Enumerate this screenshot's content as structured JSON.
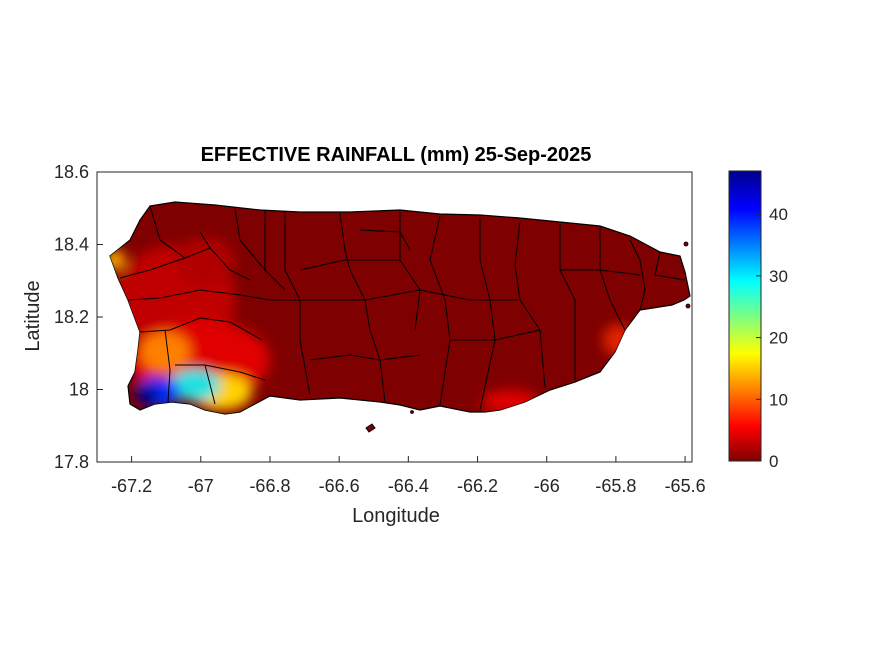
{
  "title": "EFFECTIVE RAINFALL (mm) 25-Sep-2025",
  "xlabel": "Longitude",
  "ylabel": "Latitude",
  "xlim": [
    -67.3,
    -65.58
  ],
  "ylim": [
    17.8,
    18.6
  ],
  "xticks": [
    "-67.2",
    "-67",
    "-66.8",
    "-66.6",
    "-66.4",
    "-66.2",
    "-66",
    "-65.8",
    "-65.6"
  ],
  "xtick_values": [
    -67.2,
    -67.0,
    -66.8,
    -66.6,
    -66.4,
    -66.2,
    -66.0,
    -65.8,
    -65.6
  ],
  "yticks": [
    "18.6",
    "18.4",
    "18.2",
    "18",
    "17.8"
  ],
  "ytick_values": [
    18.6,
    18.4,
    18.2,
    18.0,
    17.8
  ],
  "colorbar": {
    "colormap": "jet",
    "min": 0,
    "max": 47,
    "ticks": [
      "40",
      "30",
      "20",
      "10",
      "0"
    ],
    "tick_values": [
      40,
      30,
      20,
      10,
      0
    ]
  },
  "colors": {
    "background_rain": "#7f0000",
    "boundary": "#000000"
  },
  "chart_data": {
    "type": "heatmap",
    "title": "EFFECTIVE RAINFALL (mm) 25-Sep-2025",
    "xlabel": "Longitude",
    "ylabel": "Latitude",
    "xlim": [
      -67.3,
      -65.58
    ],
    "ylim": [
      17.8,
      18.6
    ],
    "value_range": [
      0,
      47
    ],
    "hotspots": [
      {
        "lon": -67.14,
        "lat": 17.99,
        "value": 45
      },
      {
        "lon": -67.05,
        "lat": 18.0,
        "value": 30
      },
      {
        "lon": -66.98,
        "lat": 17.98,
        "value": 18
      },
      {
        "lon": -67.15,
        "lat": 18.1,
        "value": 12
      },
      {
        "lon": -67.24,
        "lat": 18.36,
        "value": 12
      },
      {
        "lon": -66.1,
        "lat": 17.98,
        "value": 7
      },
      {
        "lon": -65.79,
        "lat": 18.13,
        "value": 6
      }
    ]
  }
}
